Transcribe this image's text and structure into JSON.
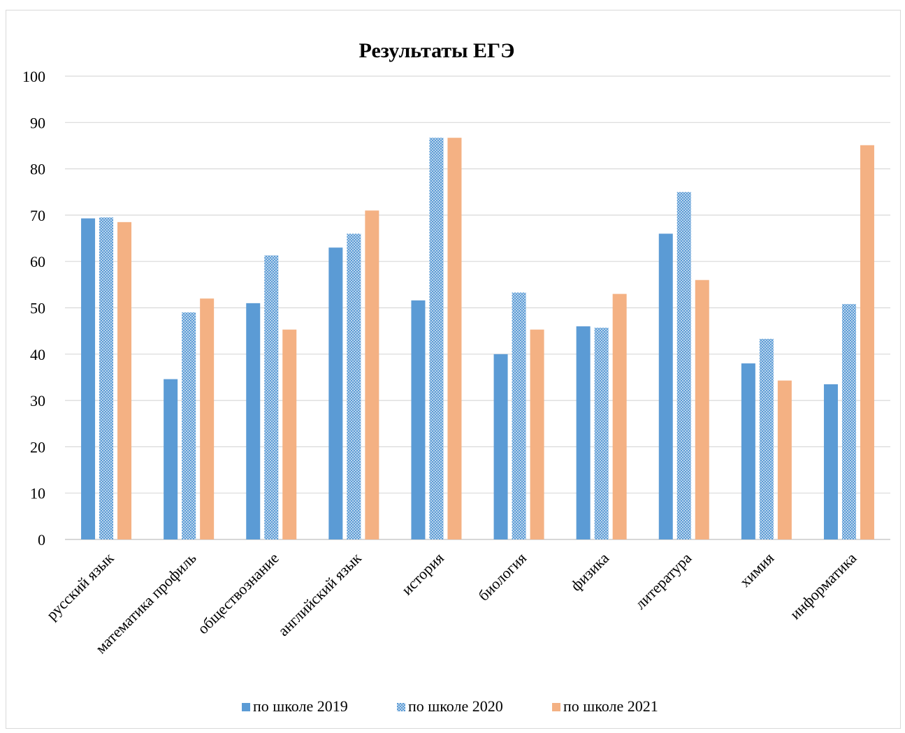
{
  "chart_data": {
    "type": "bar",
    "title": "Результаты ЕГЭ",
    "xlabel": "",
    "ylabel": "",
    "ylim": [
      0,
      100
    ],
    "yticks": [
      "0",
      "10",
      "20",
      "30",
      "40",
      "50",
      "60",
      "70",
      "80",
      "90",
      "100"
    ],
    "grid": true,
    "legend_position": "bottom",
    "categories": [
      "русский язык",
      "математика профиль",
      "обществознание",
      "английский язык",
      "история",
      "биология",
      "физика",
      "литература",
      "химия",
      "информатика"
    ],
    "series": [
      {
        "name": "по школе 2019",
        "color": "#5b9bd5",
        "pattern": "solid",
        "values": [
          69.3,
          34.6,
          51.0,
          63.0,
          51.6,
          40.0,
          46.0,
          66.0,
          38.0,
          33.5
        ]
      },
      {
        "name": "по школе 2020",
        "color": "#5b9bd5",
        "pattern": "dotted",
        "values": [
          69.5,
          49.0,
          61.3,
          66.0,
          86.7,
          53.3,
          45.7,
          75.0,
          43.3,
          50.8
        ]
      },
      {
        "name": "по школе 2021",
        "color": "#f4b183",
        "pattern": "solid",
        "values": [
          68.5,
          52.0,
          45.3,
          71.0,
          86.7,
          45.3,
          53.0,
          56.0,
          34.3,
          85.1
        ]
      }
    ]
  }
}
